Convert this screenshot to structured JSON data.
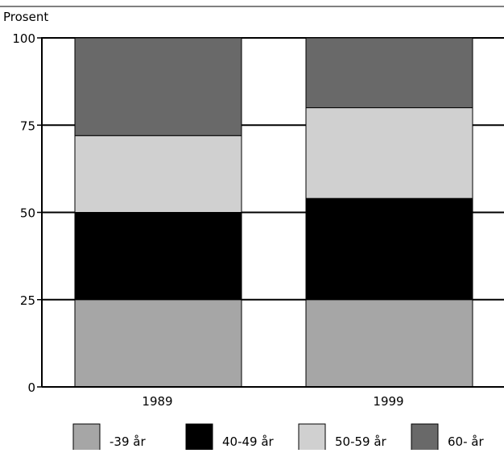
{
  "chart_data": {
    "type": "bar",
    "stacked": true,
    "ylabel": "Prosent",
    "xlabel": "",
    "title": "",
    "ylim": [
      0,
      100
    ],
    "yticks": [
      0,
      25,
      50,
      75,
      100
    ],
    "grid": true,
    "legend_position": "bottom",
    "categories": [
      "1989",
      "1999"
    ],
    "series": [
      {
        "name": "-39 år",
        "values": [
          25,
          25
        ],
        "color": "#a6a6a6"
      },
      {
        "name": "40-49 år",
        "values": [
          25,
          29
        ],
        "color": "#000000"
      },
      {
        "name": "50-59 år",
        "values": [
          22,
          26
        ],
        "color": "#d0d0d0"
      },
      {
        "name": "60- år",
        "values": [
          28,
          20
        ],
        "color": "#696969"
      }
    ]
  }
}
